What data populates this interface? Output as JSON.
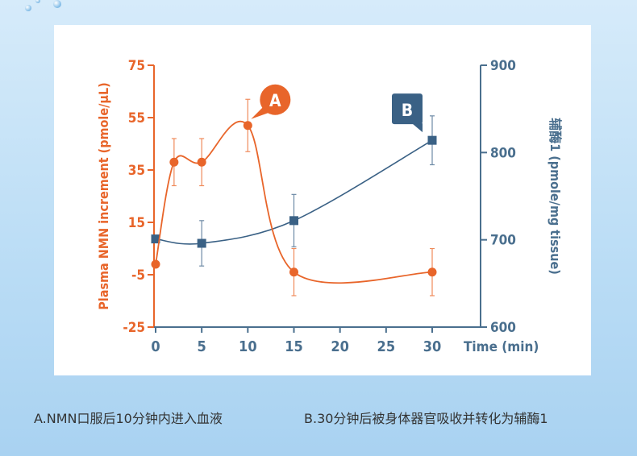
{
  "chart_data": {
    "type": "line",
    "xlabel": "Time (min)",
    "ylabel_left": "Plasma NMN increment  (pmole/μL)",
    "ylabel_right": "辅酶1 (pmole/mg tissue)",
    "x_ticks": [
      "0",
      "5",
      "10",
      "15",
      "20",
      "25",
      "30"
    ],
    "xlim": [
      0,
      30
    ],
    "y_left_ticks": [
      "75",
      "55",
      "35",
      "15",
      "-5",
      "-25"
    ],
    "y_left_lim": [
      -25,
      75
    ],
    "y_right_ticks": [
      "900",
      "800",
      "700",
      "600"
    ],
    "y_right_lim": [
      600,
      900
    ],
    "grid": false,
    "colors": {
      "series_a": "#e8652a",
      "series_b": "#3a6185",
      "axis_right": "#4a6f8e"
    },
    "series": [
      {
        "name": "A",
        "axis": "left",
        "x": [
          0,
          2,
          5,
          10,
          15,
          30
        ],
        "y": [
          -1,
          38,
          38,
          52,
          -4,
          -4
        ],
        "err": [
          0,
          9,
          9,
          10,
          9,
          9
        ]
      },
      {
        "name": "B",
        "axis": "right",
        "x": [
          0,
          5,
          15,
          30
        ],
        "y": [
          701,
          696,
          722,
          814
        ],
        "err": [
          0,
          26,
          30,
          28
        ]
      }
    ]
  },
  "caption": {
    "a_text": "A.NMN口服后10分钟内进入血液",
    "b_text": "B.30分钟后被身体器官吸收并转化为辅酶1"
  }
}
